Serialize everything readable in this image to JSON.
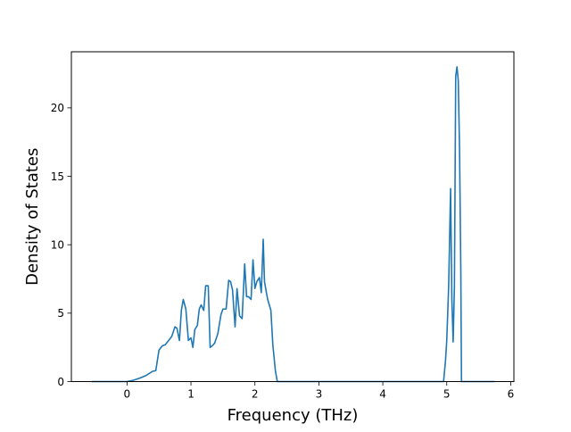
{
  "chart_data": {
    "type": "line",
    "title": "",
    "xlabel": "Frequency (THz)",
    "ylabel": "Density of States",
    "xlim": [
      -0.87,
      6.05
    ],
    "ylim": [
      0,
      24.1
    ],
    "xticks": [
      0,
      1,
      2,
      3,
      4,
      5,
      6
    ],
    "yticks": [
      0,
      5,
      10,
      15,
      20
    ],
    "xtick_labels": [
      "0",
      "1",
      "2",
      "3",
      "4",
      "5",
      "6"
    ],
    "ytick_labels": [
      "0",
      "5",
      "10",
      "15",
      "20"
    ],
    "grid": false,
    "legend": "none",
    "series": [
      {
        "color": "#1f77b4",
        "x": [
          -0.55,
          0.0,
          0.1,
          0.2,
          0.3,
          0.4,
          0.45,
          0.5,
          0.55,
          0.6,
          0.7,
          0.75,
          0.78,
          0.82,
          0.85,
          0.88,
          0.92,
          0.96,
          1.0,
          1.03,
          1.06,
          1.1,
          1.13,
          1.16,
          1.2,
          1.23,
          1.27,
          1.3,
          1.33,
          1.37,
          1.42,
          1.47,
          1.5,
          1.55,
          1.59,
          1.62,
          1.65,
          1.69,
          1.72,
          1.76,
          1.8,
          1.84,
          1.87,
          1.9,
          1.94,
          1.97,
          2.0,
          2.03,
          2.07,
          2.1,
          2.13,
          2.15,
          2.18,
          2.2,
          2.25,
          2.28,
          2.32,
          2.35,
          2.4,
          2.6,
          3.0,
          3.5,
          4.0,
          4.5,
          4.95,
          4.98,
          5.0,
          5.03,
          5.06,
          5.08,
          5.1,
          5.12,
          5.14,
          5.16,
          5.18,
          5.2,
          5.22,
          5.23,
          5.3,
          5.75
        ],
        "y": [
          0,
          0,
          0.1,
          0.25,
          0.45,
          0.75,
          0.8,
          2.3,
          2.6,
          2.7,
          3.3,
          4.0,
          3.9,
          3.0,
          5.2,
          6.0,
          5.3,
          3.0,
          3.2,
          2.5,
          3.8,
          4.1,
          5.3,
          5.6,
          5.2,
          7.0,
          7.0,
          2.5,
          2.6,
          2.8,
          3.5,
          4.9,
          5.3,
          5.3,
          7.4,
          7.3,
          6.7,
          4.0,
          6.8,
          4.8,
          4.6,
          8.6,
          6.2,
          6.2,
          6.0,
          8.9,
          6.8,
          7.3,
          7.6,
          6.5,
          10.4,
          7.3,
          6.5,
          6.0,
          5.2,
          2.7,
          0.8,
          0,
          0,
          0,
          0,
          0,
          0,
          0,
          0,
          1.5,
          3.0,
          7.0,
          14.1,
          6.0,
          2.9,
          7.0,
          22.3,
          23.0,
          22.0,
          17.0,
          8.0,
          0,
          0,
          0
        ]
      }
    ]
  }
}
